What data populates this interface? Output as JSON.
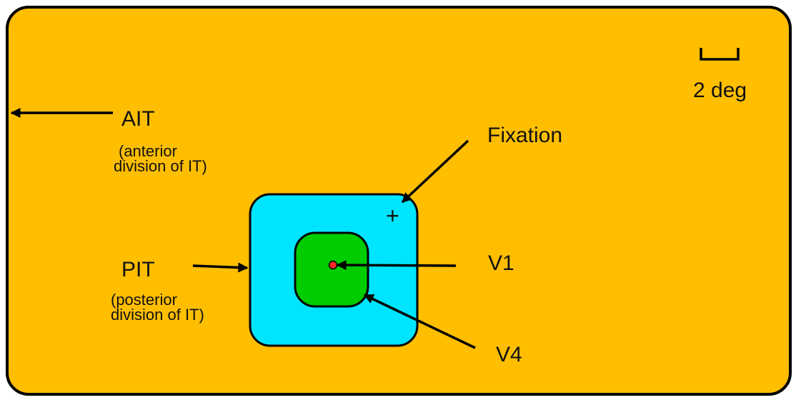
{
  "labels": {
    "ait": "AIT",
    "ait_desc_line1": "(anterior",
    "ait_desc_line2": "division of IT)",
    "pit": "PIT",
    "pit_desc_line1": "(posterior",
    "pit_desc_line2": "division of IT)",
    "v1": "V1",
    "v4": "V4",
    "fixation": "Fixation",
    "fixation_marker": "+",
    "scale": "2 deg"
  },
  "colors": {
    "ait_region": "#FFBE00",
    "pit_region": "#00E5FF",
    "v4_region": "#00CC00",
    "v1_point": "#FF2A2A",
    "stroke": "#000000"
  },
  "icons": {
    "scale_bar": "scale-bar-icon",
    "fixation_marker": "plus-icon"
  }
}
